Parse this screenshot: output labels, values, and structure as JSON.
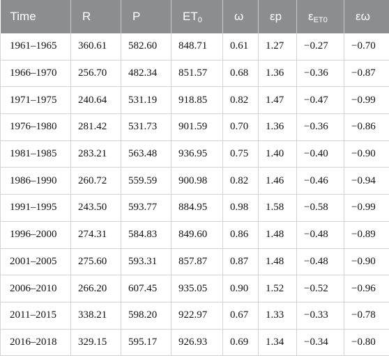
{
  "table": {
    "headers": [
      {
        "main": "Time",
        "sub": ""
      },
      {
        "main": "R",
        "sub": ""
      },
      {
        "main": "P",
        "sub": ""
      },
      {
        "main": "ET",
        "sub": "0"
      },
      {
        "main": "ω",
        "sub": ""
      },
      {
        "main": "εp",
        "sub": ""
      },
      {
        "main": "ε",
        "sub": "ET0"
      },
      {
        "main": "εω",
        "sub": ""
      }
    ],
    "rows": [
      [
        "1961–1965",
        "360.61",
        "582.60",
        "848.71",
        "0.61",
        "1.27",
        "−0.27",
        "−0.70"
      ],
      [
        "1966–1970",
        "256.70",
        "482.34",
        "851.57",
        "0.68",
        "1.36",
        "−0.36",
        "−0.87"
      ],
      [
        "1971–1975",
        "240.64",
        "531.19",
        "918.85",
        "0.82",
        "1.47",
        "−0.47",
        "−0.99"
      ],
      [
        "1976–1980",
        "281.42",
        "531.73",
        "901.59",
        "0.70",
        "1.36",
        "−0.36",
        "−0.86"
      ],
      [
        "1981–1985",
        "283.21",
        "563.48",
        "936.95",
        "0.75",
        "1.40",
        "−0.40",
        "−0.90"
      ],
      [
        "1986–1990",
        "260.72",
        "559.59",
        "900.98",
        "0.82",
        "1.46",
        "−0.46",
        "−0.94"
      ],
      [
        "1991–1995",
        "243.50",
        "593.77",
        "884.95",
        "0.98",
        "1.58",
        "−0.58",
        "−0.99"
      ],
      [
        "1996–2000",
        "274.31",
        "584.83",
        "849.60",
        "0.86",
        "1.48",
        "−0.48",
        "−0.89"
      ],
      [
        "2001–2005",
        "275.60",
        "593.31",
        "857.87",
        "0.87",
        "1.48",
        "−0.48",
        "−0.90"
      ],
      [
        "2006–2010",
        "266.20",
        "607.45",
        "935.05",
        "0.90",
        "1.52",
        "−0.52",
        "−0.96"
      ],
      [
        "2011–2015",
        "338.21",
        "598.20",
        "922.97",
        "0.67",
        "1.33",
        "−0.33",
        "−0.78"
      ],
      [
        "2016–2018",
        "329.15",
        "595.17",
        "926.93",
        "0.69",
        "1.34",
        "−0.34",
        "−0.80"
      ]
    ]
  }
}
